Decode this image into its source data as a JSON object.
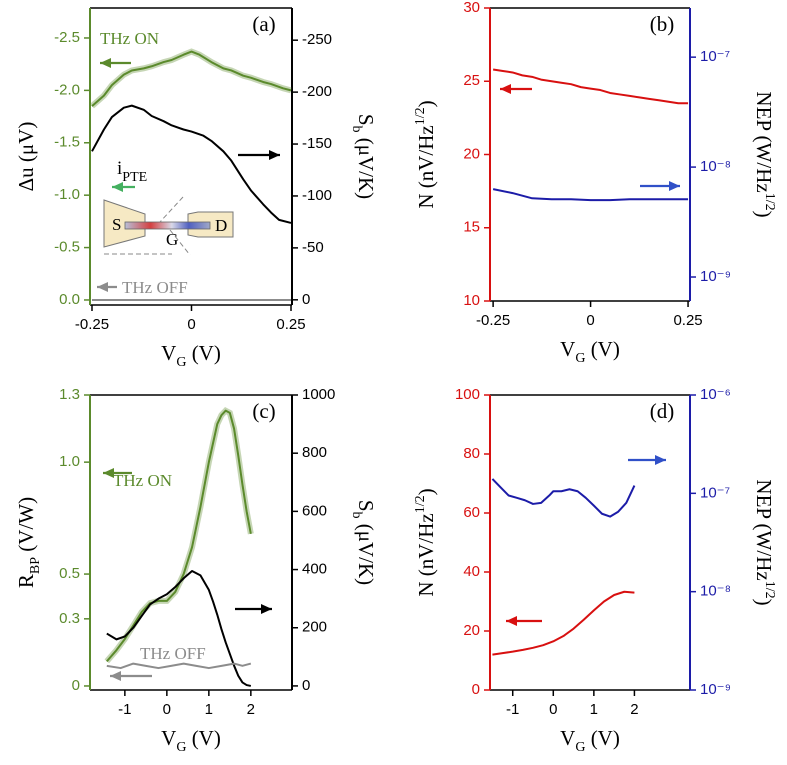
{
  "chart_data": [
    {
      "type": "line",
      "panel_label": "(a)",
      "xlabel": [
        "V",
        "G",
        " (V)"
      ],
      "ylabel": [
        "Δu (μV)"
      ],
      "y2label": [
        "S",
        "b",
        " (μV/K)"
      ],
      "xlim": [
        -0.255,
        0.2525
      ],
      "xticks": [
        -0.25,
        0,
        0.25
      ],
      "ylim": [
        0.048,
        -2.786
      ],
      "yticks": [
        -2.5,
        {
          "value": -2.0,
          "label": "-2.0"
        },
        -1.5,
        {
          "value": -1.0,
          "label": "-1.0"
        },
        -0.5,
        {
          "value": 0,
          "label": "0.0"
        }
      ],
      "y2lim": [
        5,
        -281
      ],
      "y2ticks": [
        -250,
        -200,
        -150,
        -100,
        -50,
        0
      ],
      "ycolor": "#5b8a2c",
      "y2color": "#000000",
      "series": [
        {
          "name": "THz ON",
          "color": "#5b8a2c",
          "axis": "y",
          "x": [
            -0.25,
            -0.22,
            -0.2,
            -0.17,
            -0.15,
            -0.12,
            -0.1,
            -0.07,
            -0.05,
            -0.02,
            0,
            0.02,
            0.05,
            0.08,
            0.1,
            0.13,
            0.15,
            0.18,
            0.2,
            0.23,
            0.25
          ],
          "values": [
            -1.85,
            -1.95,
            -2.05,
            -2.15,
            -2.19,
            -2.21,
            -2.23,
            -2.27,
            -2.29,
            -2.34,
            -2.37,
            -2.34,
            -2.27,
            -2.21,
            -2.19,
            -2.14,
            -2.12,
            -2.08,
            -2.06,
            -2.02,
            -2.0
          ]
        },
        {
          "color": "#000000",
          "axis": "y2",
          "x": [
            -0.25,
            -0.22,
            -0.2,
            -0.17,
            -0.15,
            -0.12,
            -0.1,
            -0.07,
            -0.05,
            -0.02,
            0,
            0.03,
            0.05,
            0.08,
            0.1,
            0.13,
            0.15,
            0.18,
            0.2,
            0.22,
            0.25
          ],
          "values": [
            -143,
            -164,
            -176,
            -185,
            -187,
            -183,
            -177,
            -172,
            -168,
            -164,
            -162,
            -158,
            -153,
            -143,
            -134,
            -116,
            -105,
            -92,
            -84,
            -77,
            -74
          ]
        },
        {
          "name": "THz OFF",
          "color": "#8c8c8c",
          "axis": "y",
          "x": [
            -0.25,
            0.25
          ],
          "values": [
            0,
            0
          ]
        }
      ],
      "annotations": [
        "THz ON",
        "THz OFF"
      ],
      "inset": {
        "current": [
          "i",
          "PTE"
        ],
        "labels": [
          "S",
          "G",
          "D"
        ]
      }
    },
    {
      "type": "line",
      "panel_label": "(b)",
      "xlabel": [
        "V",
        "G",
        " (V)"
      ],
      "ylabel": [
        "N (nV/Hz",
        "1/2",
        ")"
      ],
      "y2label": [
        "NEP (W/Hz",
        "1/2",
        ")"
      ],
      "xlim": [
        -0.258,
        0.255
      ],
      "xticks": [
        -0.25,
        0,
        0.25
      ],
      "ylim": [
        10,
        30
      ],
      "yticks": [
        10,
        15,
        20,
        25,
        30
      ],
      "y2lim": [
        6.05e-10,
        2.8e-07
      ],
      "y2scale": "log",
      "y2ticks": [
        {
          "value": 1e-09,
          "label": "10⁻⁹"
        },
        {
          "value": 1e-08,
          "label": "10⁻⁸"
        },
        {
          "value": 1e-07,
          "label": "10⁻⁷"
        }
      ],
      "ycolor": "#d81010",
      "y2color": "#1c1ca8",
      "series": [
        {
          "color": "#d81010",
          "axis": "y",
          "x": [
            -0.25,
            -0.225,
            -0.2,
            -0.175,
            -0.15,
            -0.125,
            -0.1,
            -0.075,
            -0.05,
            -0.025,
            0,
            0.025,
            0.05,
            0.075,
            0.1,
            0.125,
            0.15,
            0.175,
            0.2,
            0.225,
            0.25
          ],
          "values": [
            25.8,
            25.7,
            25.6,
            25.4,
            25.3,
            25.1,
            25.0,
            24.9,
            24.8,
            24.6,
            24.5,
            24.4,
            24.2,
            24.1,
            24.0,
            23.9,
            23.8,
            23.7,
            23.6,
            23.5,
            23.5
          ]
        },
        {
          "color": "#1c1ca8",
          "axis": "y2",
          "x": [
            -0.25,
            -0.2,
            -0.15,
            -0.1,
            -0.05,
            0,
            0.05,
            0.1,
            0.15,
            0.2,
            0.25
          ],
          "values": [
            6.3e-09,
            5.8e-09,
            5.2e-09,
            5.1e-09,
            5.1e-09,
            5e-09,
            5e-09,
            5.1e-09,
            5.1e-09,
            5.1e-09,
            5.1e-09
          ]
        }
      ]
    },
    {
      "type": "line",
      "panel_label": "(c)",
      "xlabel": [
        "V",
        "G",
        " (V)"
      ],
      "ylabel": [
        "R",
        "BP",
        " (V/W)"
      ],
      "y2label": [
        "S",
        "b",
        " (μV/K)"
      ],
      "xlim": [
        -1.83,
        2.98
      ],
      "xticks": [
        -1,
        0,
        1,
        2
      ],
      "ylim": [
        -0.018,
        1.3
      ],
      "yticks": [
        0,
        0.3,
        0.5,
        {
          "value": 1.0,
          "label": "1.0"
        },
        1.3
      ],
      "y2lim": [
        -14,
        1000
      ],
      "y2ticks": [
        0,
        200,
        400,
        600,
        800,
        1000
      ],
      "ycolor": "#5b8a2c",
      "y2color": "#000000",
      "series": [
        {
          "name": "THz ON",
          "color": "#5b8a2c",
          "axis": "y",
          "x": [
            -1.43,
            -1.2,
            -1,
            -0.8,
            -0.6,
            -0.4,
            -0.2,
            0,
            0.2,
            0.4,
            0.6,
            0.8,
            1,
            1.2,
            1.3,
            1.4,
            1.5,
            1.6,
            1.7,
            1.8,
            1.9,
            2
          ],
          "values": [
            0.11,
            0.16,
            0.21,
            0.27,
            0.33,
            0.37,
            0.38,
            0.38,
            0.42,
            0.5,
            0.62,
            0.8,
            1.0,
            1.17,
            1.21,
            1.23,
            1.22,
            1.15,
            1.03,
            0.9,
            0.78,
            0.68
          ]
        },
        {
          "color": "#000000",
          "axis": "y2",
          "x": [
            -1.43,
            -1.2,
            -1,
            -0.8,
            -0.6,
            -0.4,
            -0.2,
            0,
            0.2,
            0.4,
            0.6,
            0.8,
            1,
            1.1,
            1.2,
            1.3,
            1.4,
            1.5,
            1.6,
            1.7,
            1.8,
            1.9,
            2
          ],
          "values": [
            180,
            160,
            170,
            200,
            240,
            280,
            300,
            315,
            340,
            370,
            395,
            380,
            330,
            290,
            245,
            195,
            150,
            110,
            70,
            35,
            12,
            3,
            0
          ]
        },
        {
          "name": "THz OFF",
          "color": "#8c8c8c",
          "axis": "y",
          "x": [
            -1.43,
            -1.1,
            -0.8,
            -0.5,
            -0.2,
            0.1,
            0.4,
            0.7,
            1.0,
            1.3,
            1.6,
            1.8,
            2
          ],
          "values": [
            0.09,
            0.08,
            0.1,
            0.09,
            0.08,
            0.09,
            0.1,
            0.09,
            0.08,
            0.09,
            0.1,
            0.09,
            0.1
          ]
        }
      ],
      "annotations": [
        "THz ON",
        "THz OFF"
      ]
    },
    {
      "type": "line",
      "panel_label": "(d)",
      "xlabel": [
        "V",
        "G",
        " (V)"
      ],
      "ylabel": [
        "N (nV/Hz",
        "1/2",
        ")"
      ],
      "y2label": [
        "NEP (W/Hz",
        "1/2",
        ")"
      ],
      "xlim": [
        -1.56,
        3.37
      ],
      "xticks": [
        -1,
        0,
        1,
        2
      ],
      "ylim": [
        0,
        100
      ],
      "yticks": [
        0,
        20,
        40,
        60,
        80,
        100
      ],
      "y2lim": [
        1e-09,
        1e-06
      ],
      "y2scale": "log",
      "y2ticks": [
        {
          "value": 1e-09,
          "label": "10⁻⁹"
        },
        {
          "value": 1e-08,
          "label": "10⁻⁸"
        },
        {
          "value": 1e-07,
          "label": "10⁻⁷"
        },
        {
          "value": 1e-06,
          "label": "10⁻⁶"
        }
      ],
      "ycolor": "#d81010",
      "y2color": "#1c1ca8",
      "series": [
        {
          "color": "#d81010",
          "axis": "y",
          "x": [
            -1.5,
            -1.25,
            -1,
            -0.75,
            -0.5,
            -0.25,
            0,
            0.25,
            0.5,
            0.75,
            1,
            1.25,
            1.5,
            1.75,
            2
          ],
          "values": [
            12,
            12.5,
            13,
            13.6,
            14.3,
            15.2,
            16.5,
            18.3,
            20.8,
            23.8,
            27,
            30,
            32.2,
            33.3,
            33
          ]
        },
        {
          "color": "#1c1ca8",
          "axis": "y2",
          "x": [
            -1.5,
            -1.3,
            -1.1,
            -0.9,
            -0.7,
            -0.5,
            -0.3,
            -0.1,
            0,
            0.2,
            0.4,
            0.6,
            0.8,
            1,
            1.2,
            1.4,
            1.6,
            1.8,
            2
          ],
          "values": [
            1.4e-07,
            1.15e-07,
            9.5e-08,
            9e-08,
            8.5e-08,
            7.8e-08,
            8e-08,
            9.5e-08,
            1.05e-07,
            1.05e-07,
            1.1e-07,
            1.05e-07,
            9e-08,
            7.5e-08,
            6.2e-08,
            5.8e-08,
            6.5e-08,
            8e-08,
            1.2e-07
          ]
        }
      ]
    }
  ]
}
